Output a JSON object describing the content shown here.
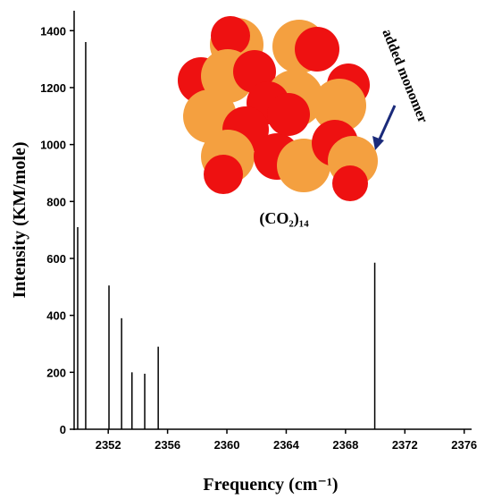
{
  "chart_data": {
    "type": "stick",
    "x_label": "Frequency (cm⁻¹)",
    "y_label": "Intensity (KM/mole)",
    "annotations": [
      "(CO₂)₁₄",
      "added monomer"
    ],
    "x": [
      2349.94,
      2350.48,
      2352.05,
      2352.9,
      2353.6,
      2354.46,
      2355.37,
      2369.97
    ],
    "values": [
      710,
      1360,
      505,
      390,
      200,
      195,
      290,
      585
    ],
    "color": "#000000",
    "xlim": [
      2349.7,
      2376.5
    ],
    "xticks": [
      2352,
      2356,
      2360,
      2364,
      2368,
      2372,
      2376
    ],
    "ylim": [
      0,
      1470
    ],
    "yticks": [
      0,
      200,
      400,
      600,
      800,
      1000,
      1200,
      1400
    ]
  }
}
